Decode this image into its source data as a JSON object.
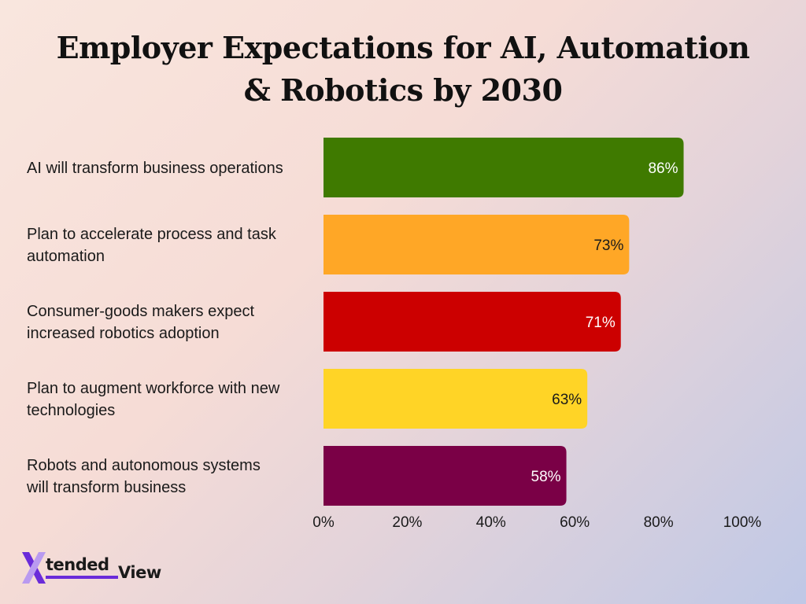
{
  "chart_data": {
    "type": "bar",
    "orientation": "horizontal",
    "title": "Employer Expectations for AI, Automation & Robotics by 2030",
    "title_lines": [
      "Employer Expectations for AI, Automation",
      "& Robotics by 2030"
    ],
    "categories": [
      [
        "AI will transform business operations"
      ],
      [
        "Plan to accelerate process and task",
        "automation"
      ],
      [
        "Consumer-goods makers expect",
        "increased robotics adoption"
      ],
      [
        "Plan to augment workforce with new",
        "technologies"
      ],
      [
        "Robots and autonomous systems",
        "will transform business"
      ]
    ],
    "values": [
      86,
      73,
      71,
      63,
      58
    ],
    "value_labels": [
      "86%",
      "73%",
      "71%",
      "63%",
      "58%"
    ],
    "bar_colors": [
      "#3f7a00",
      "#ffa726",
      "#cc0000",
      "#ffd426",
      "#7a0046"
    ],
    "label_colors": [
      "#ffffff",
      "#1a1a1a",
      "#ffffff",
      "#1a1a1a",
      "#ffffff"
    ],
    "xlim": [
      0,
      100
    ],
    "xticks": [
      0,
      20,
      40,
      60,
      80,
      100
    ],
    "xtick_labels": [
      "0%",
      "20%",
      "40%",
      "60%",
      "80%",
      "100%"
    ],
    "xlabel": "",
    "ylabel": "",
    "grid": false,
    "legend": "none"
  },
  "logo": {
    "mark": "X",
    "word1": "tended",
    "word2": "View",
    "accent_color": "#6a2bd9"
  }
}
